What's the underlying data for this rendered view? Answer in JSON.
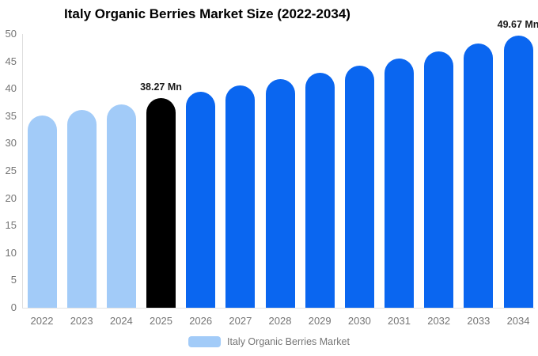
{
  "colors": {
    "historical_bar": "#a2cbf8",
    "base_year_bar": "#000000",
    "forecast_bar": "#0a66f0",
    "axis_text": "#757575",
    "title_text": "#000000",
    "value_label_text": "#1a1a1a",
    "axis_line": "#dedede",
    "background": "#ffffff"
  },
  "chart_data": {
    "type": "bar",
    "title": "Italy Organic Berries Market Size (2022-2034)",
    "unit": "Mn",
    "xlabel": "",
    "ylabel": "",
    "categories": [
      "2022",
      "2023",
      "2024",
      "2025",
      "2026",
      "2027",
      "2028",
      "2029",
      "2030",
      "2031",
      "2032",
      "2033",
      "2034"
    ],
    "values": [
      35.09,
      36.12,
      37.18,
      38.27,
      39.4,
      40.55,
      41.75,
      42.97,
      44.24,
      45.54,
      46.88,
      48.25,
      49.67
    ],
    "bar_colors": [
      "#a2cbf8",
      "#a2cbf8",
      "#a2cbf8",
      "#000000",
      "#0a66f0",
      "#0a66f0",
      "#0a66f0",
      "#0a66f0",
      "#0a66f0",
      "#0a66f0",
      "#0a66f0",
      "#0a66f0",
      "#0a66f0"
    ],
    "value_labels": [
      {
        "index": 3,
        "text": "38.27 Mn"
      },
      {
        "index": 12,
        "text": "49.67 Mn"
      }
    ],
    "ylim": [
      0,
      50
    ],
    "ytick_step": 5,
    "yticks": [
      0,
      5,
      10,
      15,
      20,
      25,
      30,
      35,
      40,
      45,
      50
    ],
    "grid": false,
    "legend": {
      "position": "bottom",
      "items": [
        {
          "label": "Italy Organic Berries Market",
          "color": "#a2cbf8"
        }
      ]
    }
  }
}
